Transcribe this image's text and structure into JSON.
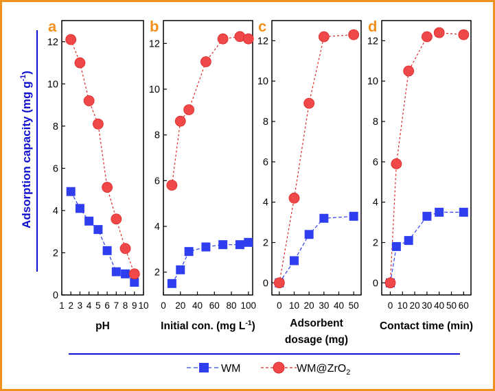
{
  "figure": {
    "ylabel": "Adsorption capacity (mg g",
    "ylabel_sup": "-1",
    "ylabel_close": ")",
    "colors": {
      "frame": "#f0901e",
      "accent": "#1010d0",
      "wm": "#2f3ff0",
      "zr": "#f04848",
      "zr_edge": "#d82828"
    }
  },
  "legend": {
    "wm_label": "WM",
    "zr_label_main": "WM@ZrO",
    "zr_label_sub": "2"
  },
  "chart_data": [
    {
      "type": "scatter",
      "letter": "a",
      "xlabel": "pH",
      "xlabel_line2": "",
      "xlim": [
        1,
        10
      ],
      "ylim": [
        0,
        13
      ],
      "xticks": [
        1,
        2,
        3,
        4,
        5,
        6,
        7,
        8,
        9,
        10
      ],
      "xtick_labels": [
        "1",
        "2",
        "3",
        "4",
        "5",
        "6",
        "7",
        "8",
        "9",
        "10"
      ],
      "yticks": [
        0,
        2,
        4,
        6,
        8,
        10,
        12
      ],
      "ytick_labels": [
        "0",
        "2",
        "4",
        "6",
        "8",
        "10",
        "12"
      ],
      "series": [
        {
          "name": "WM",
          "x": [
            2,
            3,
            4,
            5,
            6,
            7,
            8,
            9
          ],
          "y": [
            4.9,
            4.1,
            3.5,
            3.1,
            2.1,
            1.1,
            1.0,
            0.6
          ]
        },
        {
          "name": "WM@ZrO2",
          "x": [
            2,
            3,
            4,
            5,
            6,
            7,
            8,
            9
          ],
          "y": [
            12.1,
            11.0,
            9.2,
            8.1,
            5.1,
            3.6,
            2.2,
            1.0
          ]
        }
      ]
    },
    {
      "type": "scatter",
      "letter": "b",
      "xlabel": "Initial con. (mg L",
      "xlabel_sup": "-1",
      "xlabel_close": ")",
      "xlabel_line2": "",
      "xlim": [
        0,
        105
      ],
      "ylim": [
        1,
        13
      ],
      "xticks": [
        0,
        20,
        40,
        60,
        80,
        100
      ],
      "xtick_labels": [
        "0",
        "20",
        "40",
        "60",
        "80",
        "100"
      ],
      "yticks": [
        2,
        4,
        6,
        8,
        10,
        12
      ],
      "ytick_labels": [
        "2",
        "4",
        "6",
        "8",
        "10",
        "12"
      ],
      "series": [
        {
          "name": "WM",
          "x": [
            10,
            20,
            30,
            50,
            70,
            90,
            100
          ],
          "y": [
            1.5,
            2.1,
            2.9,
            3.1,
            3.2,
            3.2,
            3.3
          ]
        },
        {
          "name": "WM@ZrO2",
          "x": [
            10,
            20,
            30,
            50,
            70,
            90,
            100
          ],
          "y": [
            5.8,
            8.6,
            9.1,
            11.2,
            12.2,
            12.3,
            12.2
          ]
        }
      ]
    },
    {
      "type": "scatter",
      "letter": "c",
      "xlabel": "Adsorbent",
      "xlabel_line2": "dosage (mg)",
      "xlim": [
        -5,
        55
      ],
      "ylim": [
        -0.6,
        13
      ],
      "xticks": [
        0,
        10,
        20,
        30,
        40,
        50
      ],
      "xtick_labels": [
        "0",
        "10",
        "20",
        "30",
        "40",
        "50"
      ],
      "yticks": [
        0,
        2,
        4,
        6,
        8,
        10,
        12
      ],
      "ytick_labels": [
        "0",
        "2",
        "4",
        "6",
        "8",
        "10",
        "12"
      ],
      "series": [
        {
          "name": "WM",
          "x": [
            0,
            10,
            20,
            30,
            50
          ],
          "y": [
            0,
            1.1,
            2.4,
            3.2,
            3.3
          ]
        },
        {
          "name": "WM@ZrO2",
          "x": [
            0,
            10,
            20,
            30,
            50
          ],
          "y": [
            0,
            4.2,
            8.9,
            12.2,
            12.3
          ]
        }
      ]
    },
    {
      "type": "scatter",
      "letter": "d",
      "xlabel": "Contact time (min)",
      "xlabel_line2": "",
      "xlim": [
        -7,
        66
      ],
      "ylim": [
        -0.6,
        13
      ],
      "xticks": [
        0,
        10,
        20,
        30,
        40,
        50,
        60
      ],
      "xtick_labels": [
        "0",
        "10",
        "20",
        "30",
        "40",
        "50",
        "60"
      ],
      "yticks": [
        0,
        2,
        4,
        6,
        8,
        10,
        12
      ],
      "ytick_labels": [
        "0",
        "2",
        "4",
        "6",
        "8",
        "10",
        "12"
      ],
      "series": [
        {
          "name": "WM",
          "x": [
            0,
            5,
            15,
            30,
            40,
            60
          ],
          "y": [
            0,
            1.8,
            2.1,
            3.3,
            3.5,
            3.5
          ]
        },
        {
          "name": "WM@ZrO2",
          "x": [
            0,
            5,
            15,
            30,
            40,
            60
          ],
          "y": [
            0,
            5.9,
            10.5,
            12.2,
            12.4,
            12.3
          ]
        }
      ]
    }
  ]
}
